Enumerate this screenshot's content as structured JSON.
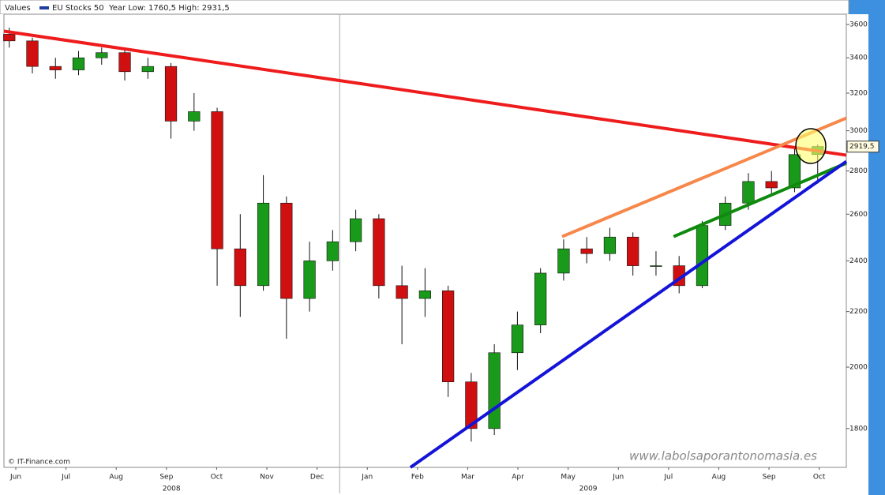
{
  "chart_data": {
    "type": "candlestick",
    "header_label": "Values",
    "subtitle": "Year Low: 1760,5 High: 2931,5",
    "source": "© IT-Finance.com",
    "watermark": "www.labolsaporantonomasia.es",
    "log_scale": true,
    "ylim": [
      1684,
      3664
    ],
    "yticks": [
      1800,
      2000,
      2200,
      2400,
      2600,
      2800,
      3000,
      3200,
      3400,
      3600
    ],
    "xlim": [
      0.264,
      17.04
    ],
    "xticks": [
      {
        "value": 0.5,
        "label": "Jun"
      },
      {
        "value": 1.5,
        "label": "Jul"
      },
      {
        "value": 2.5,
        "label": "Aug"
      },
      {
        "value": 3.5,
        "label": "Sep"
      },
      {
        "value": 4.5,
        "label": "Oct"
      },
      {
        "value": 5.5,
        "label": "Nov"
      },
      {
        "value": 6.5,
        "label": "Dec"
      },
      {
        "value": 7.5,
        "label": "Jan"
      },
      {
        "value": 8.5,
        "label": "Feb"
      },
      {
        "value": 9.5,
        "label": "Mar"
      },
      {
        "value": 10.5,
        "label": "Apr"
      },
      {
        "value": 11.5,
        "label": "May"
      },
      {
        "value": 12.5,
        "label": "Jun"
      },
      {
        "value": 13.5,
        "label": "Jul"
      },
      {
        "value": 14.5,
        "label": "Aug"
      },
      {
        "value": 15.5,
        "label": "Sep"
      },
      {
        "value": 16.5,
        "label": "Oct"
      }
    ],
    "year_labels": [
      {
        "value": 3.6,
        "label": "2008"
      },
      {
        "value": 11.9,
        "label": "2009"
      }
    ],
    "year_divider": 6.95,
    "last_value": {
      "value": 2919.5,
      "label": "2919,5"
    },
    "series": [
      {
        "name": "EU Stocks 50",
        "color": "#1f3f9f",
        "up_color": "#1a9a1a",
        "down_color": "#d01010",
        "x": [
          0.37,
          0.83,
          1.29,
          1.75,
          2.21,
          2.67,
          3.13,
          3.59,
          4.05,
          4.51,
          4.97,
          5.43,
          5.89,
          6.35,
          6.81,
          7.27,
          7.73,
          8.19,
          8.65,
          9.11,
          9.57,
          10.03,
          10.49,
          10.95,
          11.41,
          11.87,
          12.33,
          12.79,
          13.25,
          13.71,
          14.17,
          14.63,
          15.09,
          15.55,
          16.01,
          16.47
        ],
        "open": [
          3540,
          3500,
          3350,
          3330,
          3400,
          3430,
          3320,
          3350,
          3050,
          3100,
          2450,
          2300,
          2650,
          2250,
          2400,
          2480,
          2580,
          2300,
          2250,
          2280,
          1950,
          1800,
          2050,
          2150,
          2350,
          2450,
          2430,
          2500,
          2380,
          2380,
          2300,
          2550,
          2650,
          2750,
          2720,
          2880
        ],
        "high": [
          3580,
          3520,
          3400,
          3440,
          3460,
          3450,
          3400,
          3370,
          3200,
          3120,
          2600,
          2780,
          2680,
          2480,
          2530,
          2620,
          2600,
          2380,
          2370,
          2300,
          1980,
          2080,
          2200,
          2370,
          2490,
          2500,
          2540,
          2520,
          2440,
          2420,
          2570,
          2680,
          2790,
          2800,
          2920,
          2930
        ],
        "low": [
          3460,
          3310,
          3280,
          3300,
          3360,
          3270,
          3280,
          2960,
          3000,
          2300,
          2180,
          2280,
          2100,
          2200,
          2360,
          2440,
          2250,
          2080,
          2180,
          1900,
          1760,
          1780,
          1990,
          2120,
          2320,
          2390,
          2400,
          2340,
          2340,
          2270,
          2290,
          2530,
          2620,
          2680,
          2700,
          2740
        ],
        "close": [
          3500,
          3350,
          3330,
          3400,
          3430,
          3320,
          3350,
          3050,
          3100,
          2450,
          2300,
          2650,
          2250,
          2400,
          2480,
          2580,
          2300,
          2250,
          2280,
          1950,
          1800,
          2050,
          2150,
          2350,
          2450,
          2430,
          2500,
          2380,
          2380,
          2300,
          2550,
          2650,
          2750,
          2720,
          2880,
          2920
        ]
      }
    ],
    "trendlines": [
      {
        "color": "#ee1c1c",
        "x": [
          0.264,
          17.04
        ],
        "y": [
          3559,
          2877
        ]
      },
      {
        "color": "#f7874a",
        "x": [
          11.38,
          17.04
        ],
        "y": [
          2502,
          3066
        ]
      },
      {
        "color": "#0f8a0f",
        "x": [
          13.6,
          17.04
        ],
        "y": [
          2502,
          2838
        ]
      },
      {
        "color": "#1414d8",
        "x": [
          8.36,
          17.04
        ],
        "y": [
          1684,
          2846
        ]
      }
    ]
  }
}
